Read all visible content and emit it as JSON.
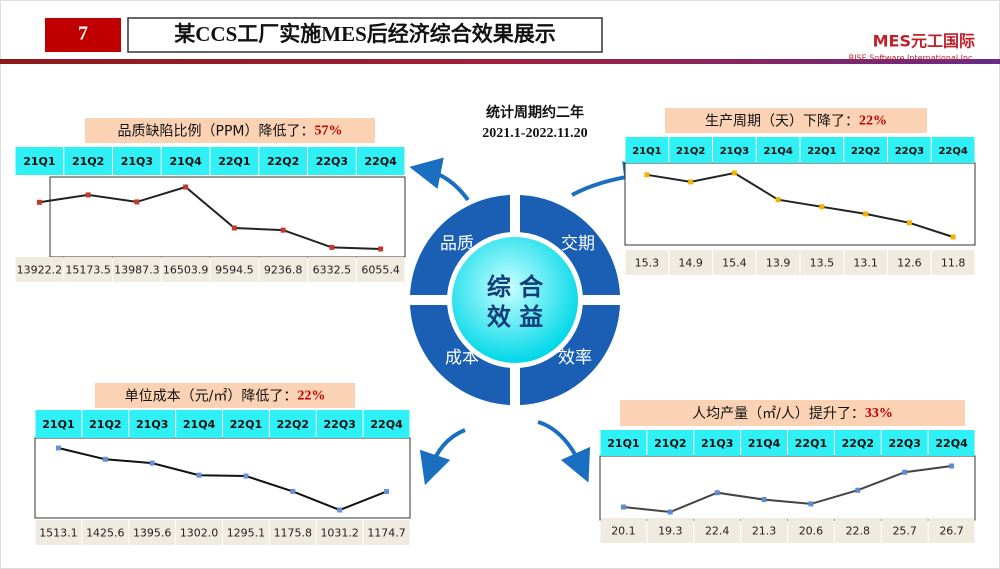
{
  "header": {
    "number": "7",
    "title": "某CCS工厂实施MES后经济综合效果展示",
    "logo": "MES元工国际",
    "logo_sub": "RISE Software International Inc."
  },
  "period": {
    "line1": "统计周期约二年",
    "line2": "2021.1-2022.11.20"
  },
  "center": {
    "core_top": "综 合",
    "core_bottom": "效 益",
    "quadrants": [
      "品质",
      "交期",
      "成本",
      "效率"
    ]
  },
  "chart_data": [
    {
      "type": "line",
      "title": "品质缺陷比例（PPM）降低了：",
      "highlight": "57%",
      "categories": [
        "21Q1",
        "21Q2",
        "21Q3",
        "21Q4",
        "22Q1",
        "22Q2",
        "22Q3",
        "22Q4"
      ],
      "values": [
        13922.2,
        15173.5,
        13987.3,
        16503.9,
        9594.5,
        9236.8,
        6332.5,
        6055.4
      ],
      "color": "#222222",
      "marker_color": "#c0392b"
    },
    {
      "type": "line",
      "title": "生产周期（天）下降了：",
      "highlight": "22%",
      "categories": [
        "21Q1",
        "21Q2",
        "21Q3",
        "21Q4",
        "22Q1",
        "22Q2",
        "22Q3",
        "22Q4"
      ],
      "values": [
        15.3,
        14.9,
        15.4,
        13.9,
        13.5,
        13.1,
        12.6,
        11.8
      ],
      "color": "#222222",
      "marker_color": "#f0b400"
    },
    {
      "type": "line",
      "title": "单位成本（元/㎡）降低了：",
      "highlight": "22%",
      "categories": [
        "21Q1",
        "21Q2",
        "21Q3",
        "21Q4",
        "22Q1",
        "22Q2",
        "22Q3",
        "22Q4"
      ],
      "values": [
        1513.1,
        1425.6,
        1395.6,
        1302.0,
        1295.1,
        1175.8,
        1031.2,
        1174.7
      ],
      "value_labels": [
        "1513.1",
        "1425.6",
        "1395.6",
        "1302.0",
        "1295.1",
        "1175.8",
        "1031.2",
        "1174.7"
      ],
      "color": "#111111",
      "marker_color": "#6a8fd8"
    },
    {
      "type": "line",
      "title": "人均产量（㎡/人）提升了：",
      "highlight": "33%",
      "categories": [
        "21Q1",
        "21Q2",
        "21Q3",
        "21Q4",
        "22Q1",
        "22Q2",
        "22Q3",
        "22Q4"
      ],
      "values": [
        20.1,
        19.3,
        22.4,
        21.3,
        20.6,
        22.8,
        25.7,
        26.7
      ],
      "color": "#444444",
      "marker_color": "#5b8bd0"
    }
  ]
}
